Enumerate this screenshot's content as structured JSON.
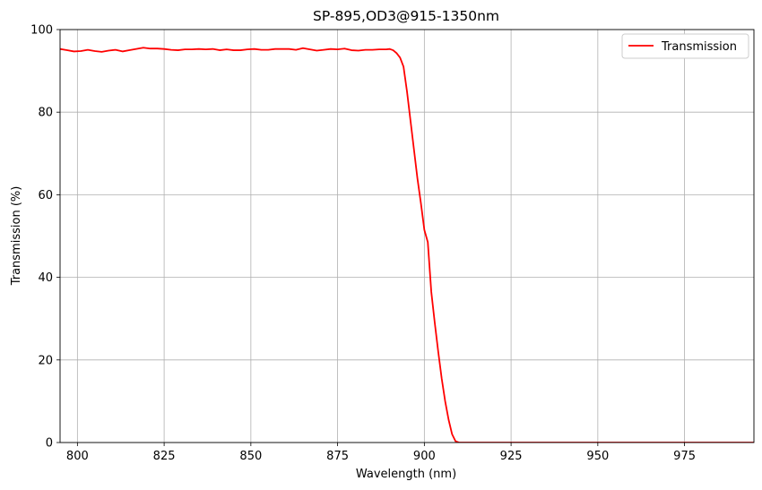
{
  "chart_data": {
    "type": "line",
    "title": "SP-895,OD3@915-1350nm",
    "xlabel": "Wavelength (nm)",
    "ylabel": "Transmission (%)",
    "xlim": [
      795,
      995
    ],
    "ylim": [
      0,
      100
    ],
    "xticks": [
      800,
      825,
      850,
      875,
      900,
      925,
      950,
      975
    ],
    "yticks": [
      0,
      20,
      40,
      60,
      80,
      100
    ],
    "grid": true,
    "legend_position": "top-right",
    "series": [
      {
        "name": "Transmission",
        "color": "#ff0000",
        "points": [
          [
            795,
            95.3
          ],
          [
            797,
            95.0
          ],
          [
            799,
            94.7
          ],
          [
            801,
            94.8
          ],
          [
            803,
            95.1
          ],
          [
            805,
            94.8
          ],
          [
            807,
            94.6
          ],
          [
            809,
            94.9
          ],
          [
            811,
            95.1
          ],
          [
            813,
            94.7
          ],
          [
            815,
            95.0
          ],
          [
            817,
            95.3
          ],
          [
            819,
            95.6
          ],
          [
            821,
            95.4
          ],
          [
            823,
            95.4
          ],
          [
            825,
            95.3
          ],
          [
            827,
            95.1
          ],
          [
            829,
            95.0
          ],
          [
            831,
            95.2
          ],
          [
            833,
            95.2
          ],
          [
            835,
            95.3
          ],
          [
            837,
            95.2
          ],
          [
            839,
            95.3
          ],
          [
            841,
            95.0
          ],
          [
            843,
            95.2
          ],
          [
            845,
            95.0
          ],
          [
            847,
            95.0
          ],
          [
            849,
            95.2
          ],
          [
            851,
            95.3
          ],
          [
            853,
            95.1
          ],
          [
            855,
            95.1
          ],
          [
            857,
            95.3
          ],
          [
            859,
            95.3
          ],
          [
            861,
            95.3
          ],
          [
            863,
            95.1
          ],
          [
            865,
            95.5
          ],
          [
            867,
            95.2
          ],
          [
            869,
            94.9
          ],
          [
            871,
            95.1
          ],
          [
            873,
            95.3
          ],
          [
            875,
            95.2
          ],
          [
            877,
            95.4
          ],
          [
            879,
            95.0
          ],
          [
            881,
            94.9
          ],
          [
            883,
            95.1
          ],
          [
            885,
            95.1
          ],
          [
            887,
            95.2
          ],
          [
            889,
            95.2
          ],
          [
            890,
            95.3
          ],
          [
            891,
            95.0
          ],
          [
            892,
            94.3
          ],
          [
            893,
            93.2
          ],
          [
            894,
            91.0
          ],
          [
            895,
            85.0
          ],
          [
            896,
            78.0
          ],
          [
            897,
            71.0
          ],
          [
            898,
            64.0
          ],
          [
            899,
            58.0
          ],
          [
            900,
            51.5
          ],
          [
            901,
            48.5
          ],
          [
            902,
            36.5
          ],
          [
            903,
            29.0
          ],
          [
            904,
            22.0
          ],
          [
            905,
            15.5
          ],
          [
            906,
            10.0
          ],
          [
            907,
            5.5
          ],
          [
            908,
            2.0
          ],
          [
            909,
            0.3
          ],
          [
            910,
            0.0
          ],
          [
            912,
            0.0
          ],
          [
            925,
            0.0
          ],
          [
            950,
            0.0
          ],
          [
            975,
            0.0
          ],
          [
            995,
            0.0
          ]
        ]
      }
    ]
  }
}
